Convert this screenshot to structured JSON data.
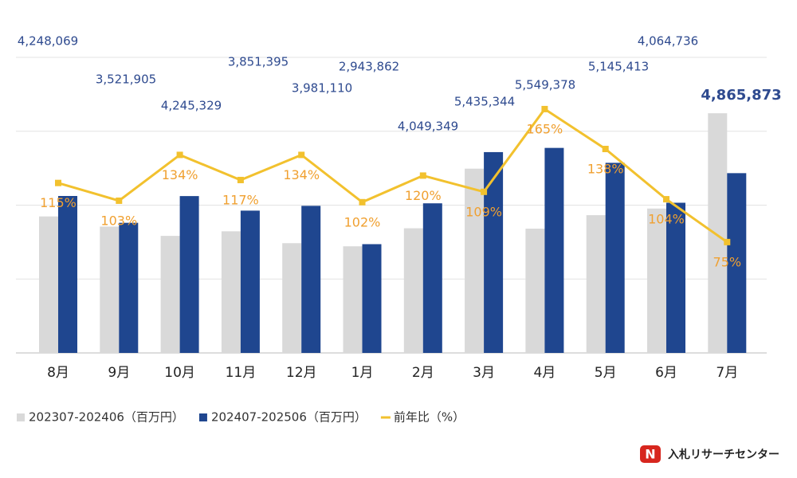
{
  "chart_data": {
    "type": "bar_line",
    "categories": [
      "8月",
      "9月",
      "10月",
      "11月",
      "12月",
      "1月",
      "2月",
      "3月",
      "4月",
      "5月",
      "6月",
      "7月"
    ],
    "series": [
      {
        "name": "202307-202406（百万円）",
        "color": "#d9d9d9",
        "type": "bar",
        "values": [
          3694000,
          3419000,
          3168000,
          3292000,
          2971000,
          2886000,
          3374000,
          4987000,
          3363000,
          3729000,
          3908000,
          6488000
        ]
      },
      {
        "name": "202407-202506（百万円）",
        "color": "#1f468f",
        "type": "bar",
        "values": [
          4248069,
          3521905,
          4245329,
          3851395,
          3981110,
          2943862,
          4049349,
          5435344,
          5549378,
          5145413,
          4064736,
          4865873
        ],
        "value_labels": [
          "4,248,069",
          "3,521,905",
          "4,245,329",
          "3,851,395",
          "3,981,110",
          "2,943,862",
          "4,049,349",
          "5,435,344",
          "5,549,378",
          "5,145,413",
          "4,064,736",
          "4,865,873"
        ]
      },
      {
        "name": "前年比（%）",
        "color": "#f2c12e",
        "type": "line",
        "axis": "y2",
        "values": [
          115,
          103,
          134,
          117,
          134,
          102,
          120,
          109,
          165,
          138,
          104,
          75
        ],
        "value_labels": [
          "115%",
          "103%",
          "134%",
          "117%",
          "134%",
          "102%",
          "120%",
          "109%",
          "165%",
          "138%",
          "104%",
          "75%"
        ]
      }
    ],
    "ylim": [
      0,
      8000000
    ],
    "yticks": [
      0,
      2000000,
      4000000,
      6000000,
      8000000
    ],
    "y2lim": [
      0,
      200
    ],
    "grid": true,
    "legend": "bottom",
    "logo_text": "入札リサーチセンター"
  }
}
